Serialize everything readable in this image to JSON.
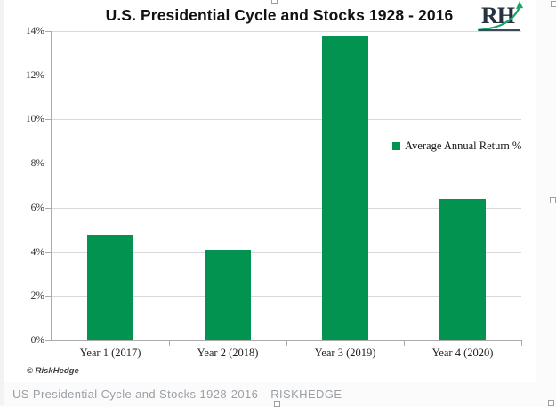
{
  "page": {
    "caption": "US Presidential Cycle and Stocks 1928-2016",
    "caption_brand": "RISKHEDGE"
  },
  "chart": {
    "logo_text": "RH",
    "copyright": "© RiskHedge",
    "colors": {
      "bar_green": "#029350",
      "gridline": "#d9d9d9",
      "axis": "#ababab",
      "caption_gray": "#999fa6"
    }
  },
  "chart_data": {
    "type": "bar",
    "title": "U.S. Presidential Cycle and Stocks 1928 - 2016",
    "categories": [
      "Year 1 (2017)",
      "Year 2 (2018)",
      "Year 3 (2019)",
      "Year 4 (2020)"
    ],
    "values": [
      4.8,
      4.1,
      13.8,
      6.4
    ],
    "series_name": "Average Annual Return %",
    "legend": [
      "Average Annual Return %"
    ],
    "legend_position": "right-overlay",
    "xlabel": "",
    "ylabel": "",
    "ylim": [
      0,
      14
    ],
    "ytick_step": 2,
    "ytick_suffix": "%",
    "grid": true,
    "bar_color": "#029350"
  }
}
